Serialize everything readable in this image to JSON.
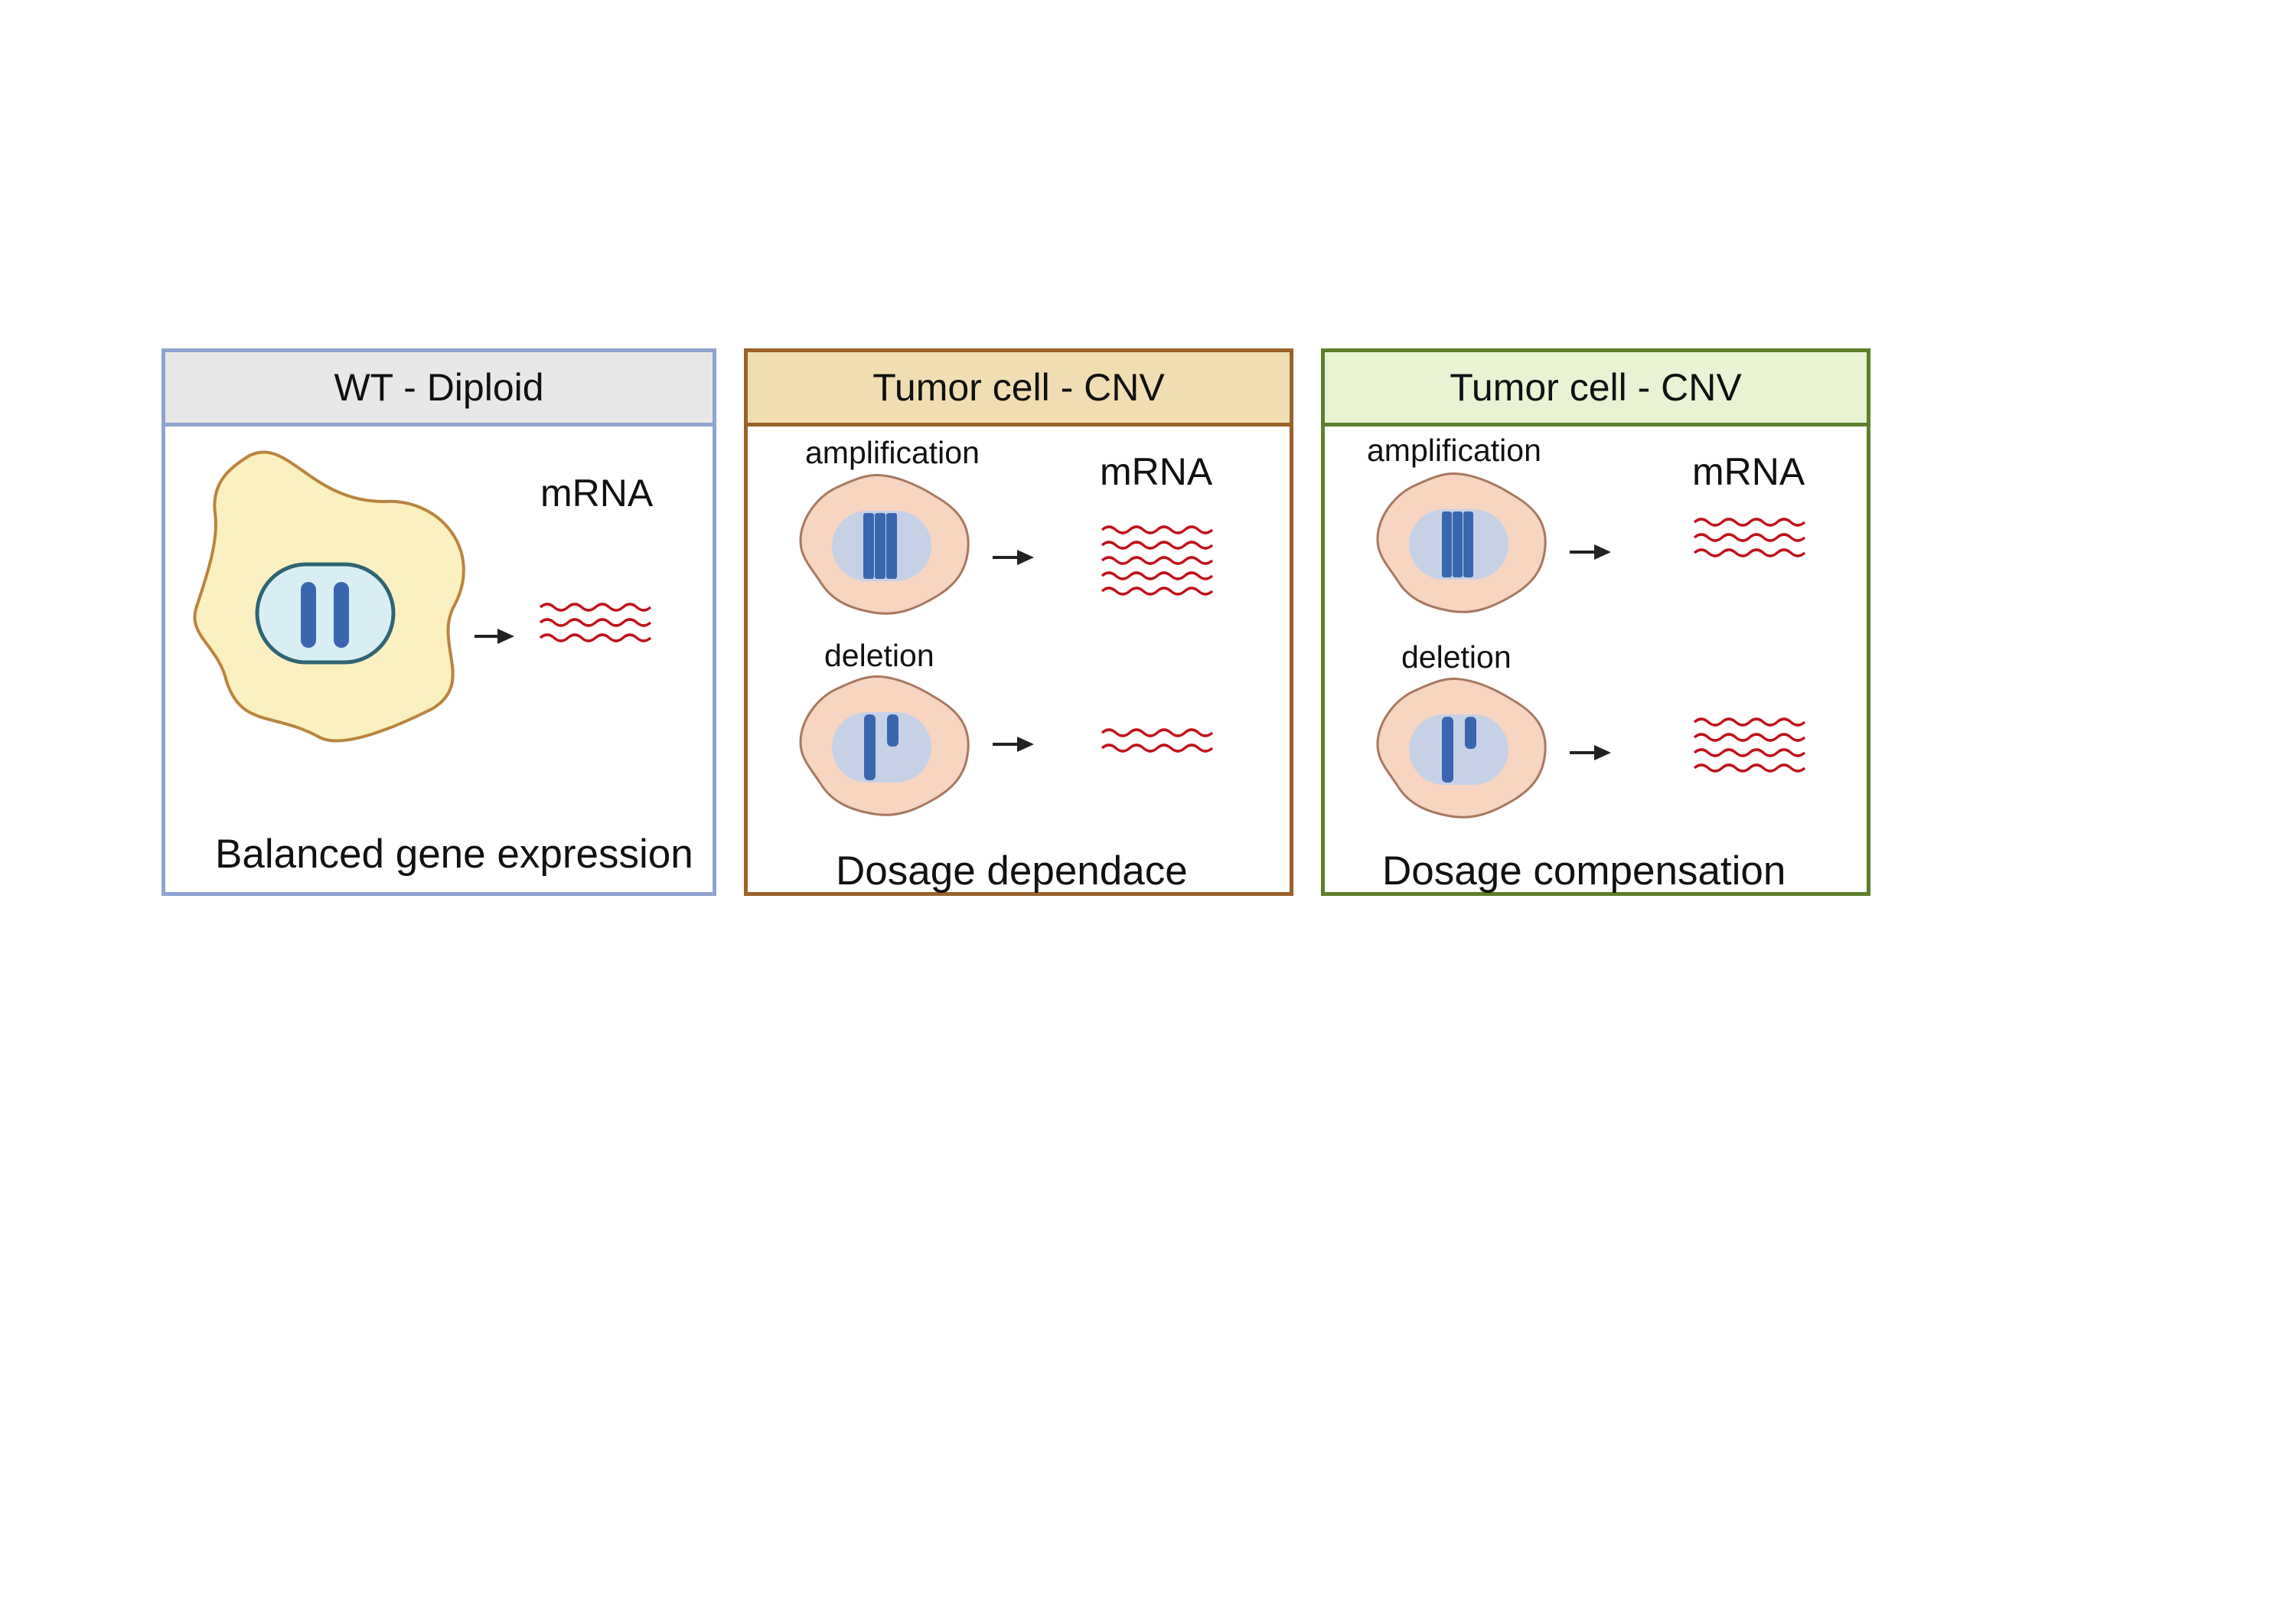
{
  "panels": {
    "wt": {
      "title": "WT - Diploid",
      "mrna_label": "mRNA",
      "footer": "Balanced gene expression"
    },
    "dependence": {
      "title": "Tumor cell - CNV",
      "amplification_label": "amplification",
      "deletion_label": "deletion",
      "mrna_label": "mRNA",
      "footer": "Dosage dependace"
    },
    "compensation": {
      "title": "Tumor cell - CNV",
      "amplification_label": "amplification",
      "deletion_label": "deletion",
      "mrna_label": "mRNA",
      "footer": "Dosage compensation"
    }
  },
  "colors": {
    "wt_border": "#8fa5cf",
    "dependence_border": "#9a6228",
    "compensation_border": "#5c7f2a",
    "mrna": "#c0131b",
    "chromosome": "#3a66b0"
  }
}
